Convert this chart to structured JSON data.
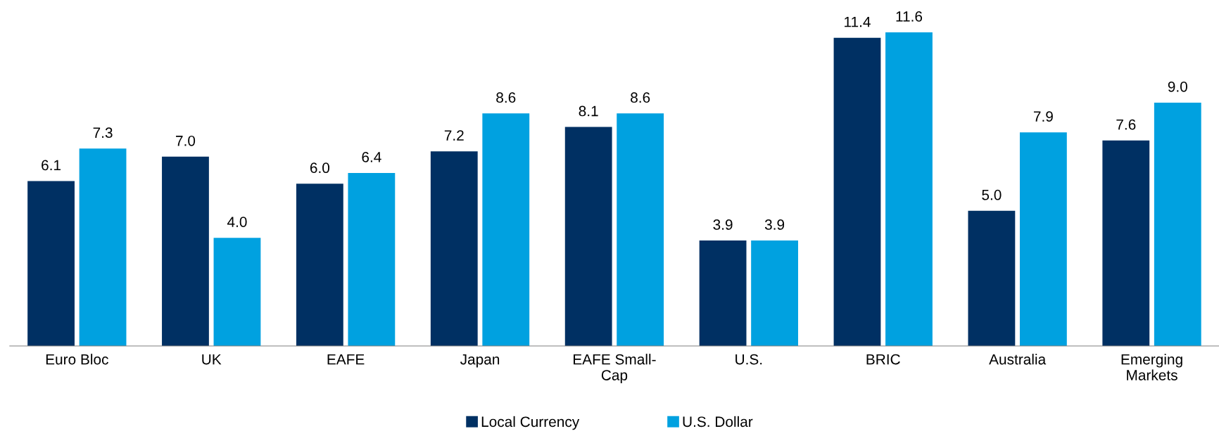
{
  "chart_data": {
    "type": "bar",
    "categories": [
      "Euro Bloc",
      "UK",
      "EAFE",
      "Japan",
      "EAFE Small-\nCap",
      "U.S.",
      "BRIC",
      "Australia",
      "Emerging\nMarkets"
    ],
    "series": [
      {
        "name": "Local Currency",
        "color": "#003063",
        "values": [
          6.1,
          7.0,
          6.0,
          7.2,
          8.1,
          3.9,
          11.4,
          5.0,
          7.6
        ],
        "value_labels": [
          "6.1",
          "7.0",
          "6.0",
          "7.2",
          "8.1",
          "3.9",
          "11.4",
          "5.0",
          "7.6"
        ]
      },
      {
        "name": "U.S. Dollar",
        "color": "#00a1e0",
        "values": [
          7.3,
          4.0,
          6.4,
          8.6,
          8.6,
          3.9,
          11.6,
          7.9,
          9.0
        ],
        "value_labels": [
          "7.3",
          "4.0",
          "6.4",
          "8.6",
          "8.6",
          "3.9",
          "11.6",
          "7.9",
          "9.0"
        ]
      }
    ],
    "legend": "bottom",
    "grid": false
  }
}
